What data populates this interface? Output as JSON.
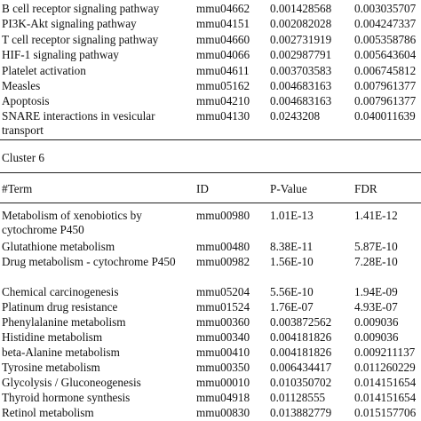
{
  "top_rows": [
    {
      "term": "B cell receptor signaling pathway",
      "id": "mmu04662",
      "p": "0.001428568",
      "fdr": "0.003035707"
    },
    {
      "term": "PI3K-Akt signaling pathway",
      "id": "mmu04151",
      "p": "0.002082028",
      "fdr": "0.004247337"
    },
    {
      "term": "T cell receptor signaling pathway",
      "id": "mmu04660",
      "p": "0.002731919",
      "fdr": "0.005358786"
    },
    {
      "term": "HIF-1 signaling pathway",
      "id": "mmu04066",
      "p": "0.002987791",
      "fdr": "0.005643604"
    },
    {
      "term": "Platelet activation",
      "id": "mmu04611",
      "p": "0.003703583",
      "fdr": "0.006745812"
    },
    {
      "term": "Measles",
      "id": "mmu05162",
      "p": "0.004683163",
      "fdr": "0.007961377"
    },
    {
      "term": "Apoptosis",
      "id": "mmu04210",
      "p": "0.004683163",
      "fdr": "0.007961377"
    },
    {
      "term": "SNARE interactions in vesicular transport",
      "id": "mmu04130",
      "p": "0.0243208",
      "fdr": "0.040011639"
    }
  ],
  "cluster_label": "Cluster 6",
  "headers": {
    "term": "#Term",
    "id": "ID",
    "p": "P-Value",
    "fdr": "FDR"
  },
  "cluster6_rows": [
    {
      "term": "Metabolism of xenobiotics by cytochrome P450",
      "id": "mmu00980",
      "p": "1.01E-13",
      "fdr": "1.41E-12"
    },
    {
      "term": "Glutathione metabolism",
      "id": "mmu00480",
      "p": "8.38E-11",
      "fdr": "5.87E-10"
    },
    {
      "term": "Drug metabolism - cytochrome P450",
      "id": "mmu00982",
      "p": "1.56E-10",
      "fdr": "7.28E-10"
    },
    {
      "term": "Chemical carcinogenesis",
      "id": "mmu05204",
      "p": "5.56E-10",
      "fdr": "1.94E-09"
    },
    {
      "term": "Platinum drug resistance",
      "id": "mmu01524",
      "p": "1.76E-07",
      "fdr": "4.93E-07"
    },
    {
      "term": "Phenylalanine metabolism",
      "id": "mmu00360",
      "p": "0.003872562",
      "fdr": "0.009036"
    },
    {
      "term": "Histidine metabolism",
      "id": "mmu00340",
      "p": "0.004181826",
      "fdr": "0.009036"
    },
    {
      "term": "beta-Alanine metabolism",
      "id": "mmu00410",
      "p": "0.004181826",
      "fdr": "0.009211137"
    },
    {
      "term": "Tyrosine metabolism",
      "id": "mmu00350",
      "p": "0.006434417",
      "fdr": "0.011260229"
    },
    {
      "term": "Glycolysis / Gluconeogenesis",
      "id": "mmu00010",
      "p": "0.010350702",
      "fdr": "0.014151654"
    },
    {
      "term": "Thyroid hormone synthesis",
      "id": "mmu04918",
      "p": "0.01128555",
      "fdr": "0.014151654"
    },
    {
      "term": "Retinol metabolism",
      "id": "mmu00830",
      "p": "0.013882779",
      "fdr": "0.015157706"
    }
  ]
}
